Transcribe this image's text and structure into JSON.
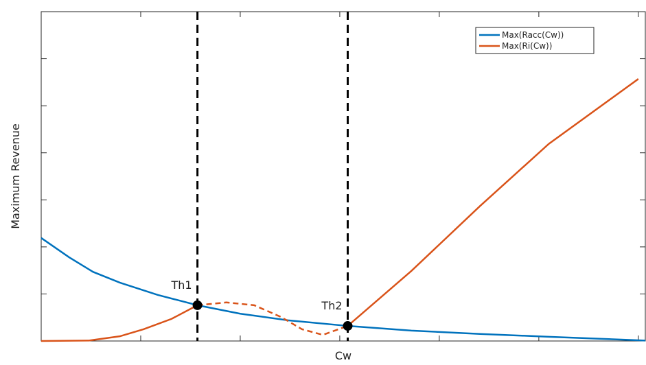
{
  "chart_data": {
    "type": "line",
    "xlabel": "Cw",
    "ylabel": "Maximum Revenue",
    "xlim": [
      0,
      6.07
    ],
    "ylim": [
      0,
      7
    ],
    "xticks": [
      0,
      1,
      2,
      3,
      4,
      5,
      6
    ],
    "yticks": [
      0,
      1,
      2,
      3,
      4,
      5,
      6,
      7
    ],
    "legend": "top-right",
    "series": [
      {
        "name": "Max(Racc(Cw))",
        "color": "#0072bd",
        "x": [
          0,
          0.28,
          0.52,
          0.79,
          1.17,
          1.57,
          2.0,
          2.48,
          3.08,
          3.72,
          4.41,
          5.1,
          6.07
        ],
        "values": [
          2.19,
          1.78,
          1.47,
          1.24,
          0.98,
          0.76,
          0.58,
          0.44,
          0.32,
          0.22,
          0.15,
          0.09,
          0.01
        ]
      },
      {
        "name": "Max(Ri(Cw))",
        "color": "#d95319",
        "x": [
          0,
          0.48,
          0.79,
          1.03,
          1.31,
          1.57,
          2.3,
          3.08,
          3.72,
          4.41,
          5.1,
          6.0
        ],
        "values": [
          0,
          0.01,
          0.1,
          0.25,
          0.47,
          0.76,
          null,
          0.32,
          1.49,
          2.87,
          4.19,
          5.57
        ]
      }
    ],
    "connector": {
      "color": "#d95319",
      "style": "dashed",
      "x": [
        1.57,
        1.86,
        2.14,
        2.41,
        2.62,
        2.83,
        3.08
      ],
      "values": [
        0.76,
        0.82,
        0.76,
        0.51,
        0.25,
        0.13,
        0.32
      ]
    },
    "thresholds": [
      {
        "label": "Th1",
        "x": 1.57,
        "y": 0.76
      },
      {
        "label": "Th2",
        "x": 3.08,
        "y": 0.32
      }
    ]
  }
}
